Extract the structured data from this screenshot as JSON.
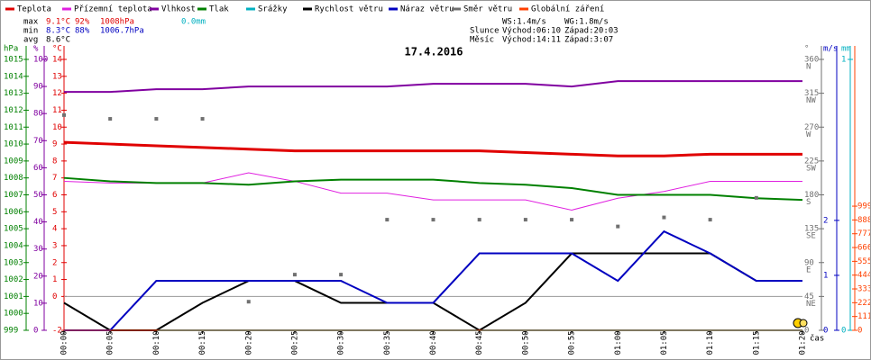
{
  "chart_data": {
    "type": "line",
    "title": "17.4.2016",
    "xlabel": "čas",
    "categories": [
      "00:00",
      "00:05",
      "00:10",
      "00:15",
      "00:20",
      "00:25",
      "00:30",
      "00:35",
      "00:40",
      "00:45",
      "00:50",
      "00:55",
      "01:00",
      "01:05",
      "01:10",
      "01:15",
      "01:20"
    ],
    "axes": {
      "hpa": {
        "label": "hPa",
        "color": "#008000",
        "lim": [
          999,
          1015
        ],
        "ticks": [
          999,
          1000,
          1001,
          1002,
          1003,
          1004,
          1005,
          1006,
          1007,
          1008,
          1009,
          1010,
          1011,
          1012,
          1013,
          1014,
          1015
        ]
      },
      "pct": {
        "label": "%",
        "color": "#8000a0",
        "lim": [
          0,
          100
        ],
        "ticks": [
          0,
          10,
          20,
          30,
          40,
          50,
          60,
          70,
          80,
          90,
          100
        ]
      },
      "temp": {
        "label": "°C",
        "color": "#e00000",
        "lim": [
          -2,
          14
        ],
        "ticks": [
          -2,
          0,
          1,
          2,
          3,
          4,
          5,
          6,
          7,
          8,
          9,
          10,
          11,
          12,
          13,
          14
        ]
      },
      "dir": {
        "label": "°",
        "color": "#707070",
        "lim": [
          0,
          360
        ],
        "ticks": [
          0,
          45,
          90,
          135,
          180,
          225,
          270,
          315,
          360
        ],
        "compass": [
          null,
          "NE",
          "E",
          "SE",
          "S",
          "SW",
          "W",
          "NW",
          "N"
        ]
      },
      "ms": {
        "label": "m/s",
        "color": "#0000c0",
        "lim": [
          0,
          4.93
        ],
        "ticks": [
          0,
          1,
          2
        ]
      },
      "mm": {
        "label": "mm",
        "color": "#00b0c0",
        "lim": [
          0,
          1
        ],
        "ticks": [
          0,
          1
        ]
      },
      "rad": {
        "color": "#ff4000",
        "lim": [
          0,
          2180
        ],
        "ticks": [
          0,
          111,
          222,
          333,
          444,
          555,
          666,
          777,
          888,
          999
        ]
      }
    },
    "series": [
      {
        "name": "Teplota",
        "color": "#e00000",
        "axis": "temp",
        "width": 3,
        "values": [
          9.1,
          9.0,
          8.9,
          8.8,
          8.7,
          8.6,
          8.6,
          8.6,
          8.6,
          8.6,
          8.5,
          8.4,
          8.3,
          8.3,
          8.4,
          8.4,
          8.4
        ]
      },
      {
        "name": "Přízemní teplota",
        "color": "#e020e0",
        "axis": "temp",
        "width": 1,
        "values": [
          6.8,
          6.7,
          6.7,
          6.7,
          7.3,
          6.8,
          6.1,
          6.1,
          5.7,
          5.7,
          5.7,
          5.1,
          5.8,
          6.2,
          6.8,
          6.8,
          6.8
        ]
      },
      {
        "name": "Vlhkost",
        "color": "#8000a0",
        "axis": "pct",
        "width": 2,
        "values": [
          88,
          88,
          89,
          89,
          90,
          90,
          90,
          90,
          91,
          91,
          91,
          90,
          92,
          92,
          92,
          92,
          92
        ]
      },
      {
        "name": "Tlak",
        "color": "#008000",
        "axis": "hpa",
        "width": 2,
        "values": [
          1008.0,
          1007.8,
          1007.7,
          1007.7,
          1007.6,
          1007.8,
          1007.9,
          1007.9,
          1007.9,
          1007.7,
          1007.6,
          1007.4,
          1007.0,
          1007.0,
          1007.0,
          1006.8,
          1006.7
        ]
      },
      {
        "name": "Srážky",
        "color": "#00b0c0",
        "axis": "mm",
        "width": 2,
        "values": [
          0,
          0,
          0,
          0,
          0,
          0,
          0,
          0,
          0,
          0,
          0,
          0,
          0,
          0,
          0,
          0,
          0
        ]
      },
      {
        "name": "Rychlost větru",
        "color": "#000000",
        "axis": "ms",
        "width": 2,
        "values": [
          0.5,
          0,
          0,
          0.5,
          0.9,
          0.9,
          0.5,
          0.5,
          0.5,
          0,
          0.5,
          1.4,
          1.4,
          1.4,
          1.4,
          0.9,
          0.9
        ]
      },
      {
        "name": "Náraz větru",
        "color": "#0000c0",
        "axis": "ms",
        "width": 2,
        "values": [
          0,
          0,
          0.9,
          0.9,
          0.9,
          0.9,
          0.9,
          0.5,
          0.5,
          1.4,
          1.4,
          1.4,
          0.9,
          1.8,
          1.4,
          0.9,
          0.9
        ]
      },
      {
        "name": "Směr větru",
        "color": "#707070",
        "axis": "dir",
        "marker": "dots",
        "values": [
          286,
          281,
          281,
          281,
          38,
          74,
          74,
          147,
          147,
          147,
          147,
          147,
          138,
          150,
          147,
          176,
          null
        ]
      },
      {
        "name": "Globální záření",
        "color": "#ff4000",
        "axis": "rad",
        "width": 1,
        "values": [
          0,
          0,
          0,
          0,
          0,
          0,
          0,
          0,
          0,
          0,
          0,
          0,
          0,
          0,
          0,
          0,
          0
        ]
      }
    ],
    "stats": [
      [
        "max",
        "9.1°C",
        "92%",
        "1008hPa",
        "0.0mm"
      ],
      [
        "min",
        "8.3°C",
        "88%",
        "1006.7hPa"
      ],
      [
        "avg",
        "8.6°C"
      ]
    ],
    "info": [
      [
        "WS:1.4m/s",
        "WG:1.8m/s"
      ],
      [
        "Slunce",
        "Východ:06:10",
        "Západ:20:03"
      ],
      [
        "Měsíc",
        "Východ:14:11",
        "Západ:3:07"
      ]
    ]
  }
}
